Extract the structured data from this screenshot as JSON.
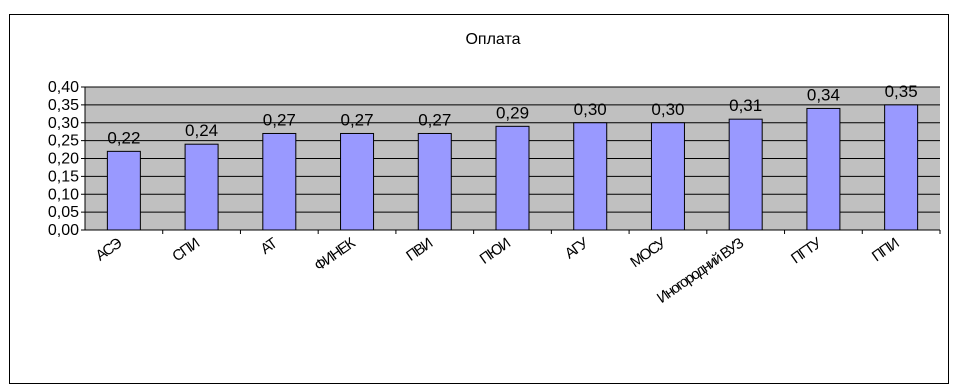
{
  "chart_data": {
    "type": "bar",
    "title": "Оплата",
    "categories": [
      "АСЭ",
      "СПИ",
      "АТ",
      "ФИНЕК",
      "ПВИ",
      "ПЮИ",
      "АГУ",
      "МОСУ",
      "Иногородний ВУЗ",
      "ПГТУ",
      "ППИ"
    ],
    "values": [
      0.22,
      0.24,
      0.27,
      0.27,
      0.27,
      0.29,
      0.3,
      0.3,
      0.31,
      0.34,
      0.35
    ],
    "data_labels": [
      "0,22",
      "0,24",
      "0,27",
      "0,27",
      "0,27",
      "0,29",
      "0,30",
      "0,30",
      "0,31",
      "0,34",
      "0,35"
    ],
    "yticks": [
      "0,00",
      "0,05",
      "0,10",
      "0,15",
      "0,20",
      "0,25",
      "0,30",
      "0,35",
      "0,40"
    ],
    "ylim": [
      0,
      0.4
    ],
    "grid": true,
    "legend": "none",
    "plot_background": "#c0c0c0",
    "bar_color": "#9999ff",
    "xlabel": "",
    "ylabel": ""
  }
}
